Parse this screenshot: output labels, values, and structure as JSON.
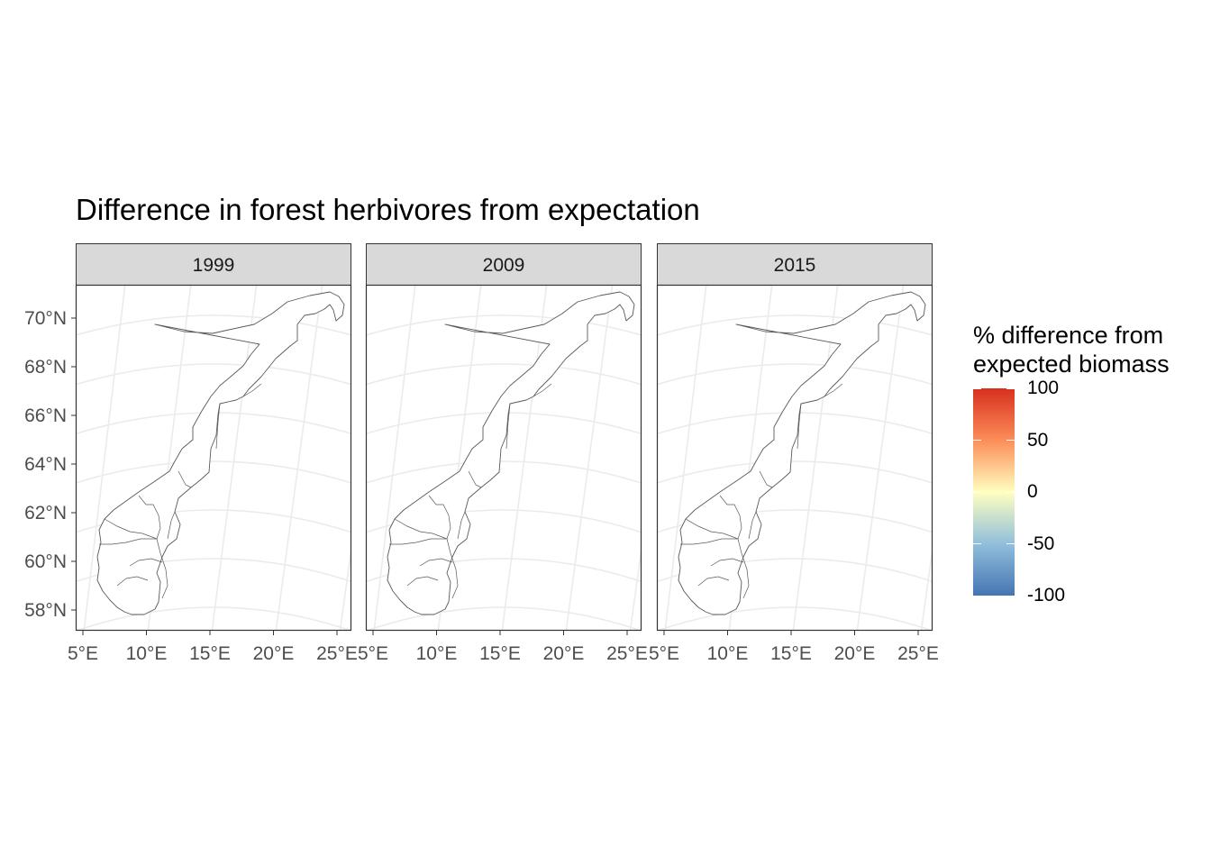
{
  "title": "Difference in forest herbivores from expectation",
  "panels": [
    {
      "label": "1999"
    },
    {
      "label": "2009"
    },
    {
      "label": "2015"
    }
  ],
  "axes": {
    "x_ticks": [
      "5°E",
      "10°E",
      "15°E",
      "20°E",
      "25°E"
    ],
    "y_ticks": [
      "70°N",
      "68°N",
      "66°N",
      "64°N",
      "62°N",
      "60°N",
      "58°N"
    ],
    "lon_values": [
      5,
      10,
      15,
      20,
      25
    ],
    "lat_values": [
      70,
      68,
      66,
      64,
      62,
      60,
      58
    ]
  },
  "legend": {
    "title_line1": "% difference from",
    "title_line2": "expected biomass",
    "labels": [
      "100",
      "50",
      "0",
      "-50",
      "-100"
    ],
    "values": [
      100,
      50,
      0,
      -50,
      -100
    ],
    "range": [
      -100,
      100
    ],
    "colors": [
      "#d7301f",
      "#fc8d59",
      "#ffffbf",
      "#91bfdb",
      "#4575b4"
    ]
  },
  "colors": {
    "strip_fill": "#d9d9d9",
    "panel_border": "#333333",
    "grid": "#ebebeb",
    "map_outline": "#595959",
    "tick_text": "#4d4d4d"
  }
}
